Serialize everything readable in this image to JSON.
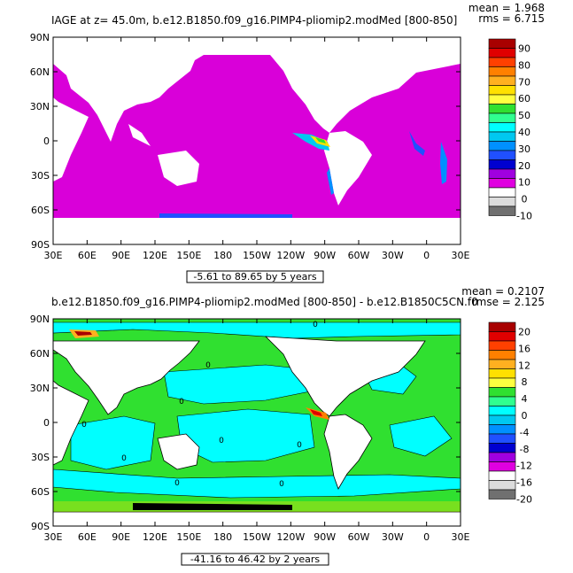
{
  "chart_data": [
    {
      "type": "heatmap",
      "title": "IAGE at z=   45.0m, b.e12.B1850.f09_g16.PIMP4-pliomip2.modMed [800-850]",
      "stats": {
        "mean_text": "mean = 1.968",
        "rms_text": "rms = 6.715"
      },
      "contour_note": "-5.61 to 89.65 by 5 years",
      "x_ticks": [
        "30E",
        "60E",
        "90E",
        "120E",
        "150E",
        "180",
        "150W",
        "120W",
        "90W",
        "60W",
        "30W",
        "0",
        "30E"
      ],
      "y_ticks": [
        "90N",
        "60N",
        "30N",
        "0",
        "30S",
        "60S",
        "90S"
      ],
      "colorbar": {
        "labels": [
          "90",
          "80",
          "70",
          "60",
          "50",
          "40",
          "30",
          "20",
          "10",
          "0",
          "-10"
        ],
        "colors": [
          "#a80000",
          "#e00000",
          "#ff4000",
          "#ff8000",
          "#ffb020",
          "#ffe000",
          "#ffff40",
          "#30e030",
          "#30ff90",
          "#00ffff",
          "#00c8f0",
          "#0090ff",
          "#2050ff",
          "#0000d0",
          "#a000e0",
          "#e000e0",
          "#ffffff",
          "#dcdcdc",
          "#707070"
        ]
      }
    },
    {
      "type": "heatmap",
      "title": "b.e12.B1850.f09_g16.PIMP4-pliomip2.modMed [800-850] - b.e12.B1850C5CN.f0",
      "stats": {
        "mean_text": "mean = 0.2107",
        "rms_text": "rmse = 2.125"
      },
      "contour_note": "-41.16 to 46.42 by 2 years",
      "x_ticks": [
        "30E",
        "60E",
        "90E",
        "120E",
        "150E",
        "180",
        "150W",
        "120W",
        "90W",
        "60W",
        "30W",
        "0",
        "30E"
      ],
      "y_ticks": [
        "90N",
        "60N",
        "30N",
        "0",
        "30S",
        "60S",
        "90S"
      ],
      "contour_labels": [
        "0",
        "0",
        "0",
        "0",
        "0",
        "0",
        "0",
        "0",
        "0"
      ],
      "colorbar": {
        "labels": [
          "20",
          "16",
          "12",
          "8",
          "4",
          "0",
          "-4",
          "-8",
          "-12",
          "-16",
          "-20"
        ],
        "colors": [
          "#a80000",
          "#e00000",
          "#ff4000",
          "#ff8000",
          "#ffb020",
          "#ffe000",
          "#ffff40",
          "#30e030",
          "#30ff90",
          "#00ffff",
          "#00c8f0",
          "#0090ff",
          "#2050ff",
          "#0000d0",
          "#a000e0",
          "#e000e0",
          "#ffffff",
          "#dcdcdc",
          "#707070"
        ]
      }
    }
  ]
}
